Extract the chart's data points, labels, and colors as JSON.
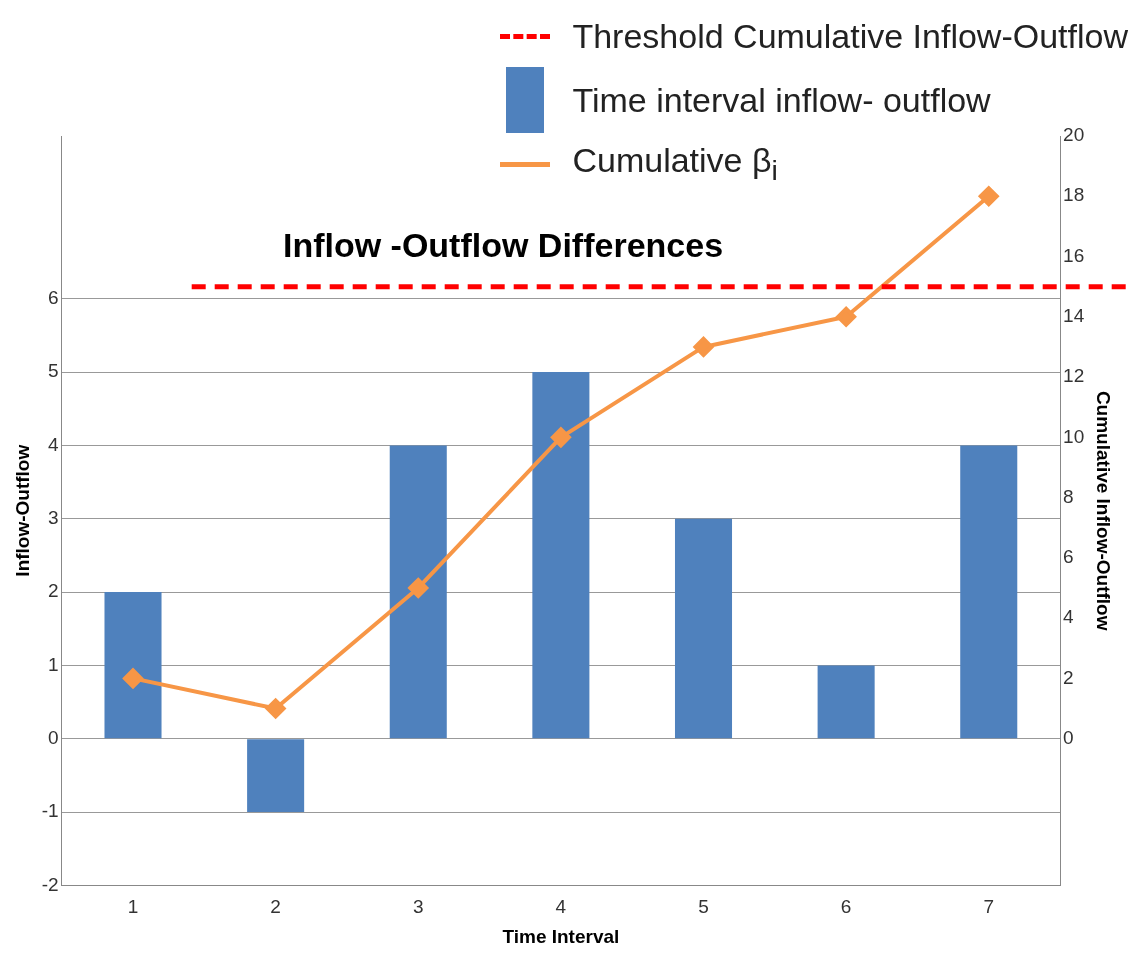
{
  "chart_data": {
    "type": "bar",
    "title": "Inflow -Outflow Differences",
    "xlabel": "Time Interval",
    "ylabel": "Inflow-Outflow",
    "y2label": "Cumulative Inflow-Outflow",
    "categories": [
      "1",
      "2",
      "3",
      "4",
      "5",
      "6",
      "7"
    ],
    "series": [
      {
        "name": "Time interval inflow- outflow",
        "color": "#4f81bd",
        "values": [
          2,
          -1,
          4,
          5,
          3,
          1,
          4
        ]
      },
      {
        "name": "Cumulative β$_{i}$",
        "type": "line",
        "axis": "y2",
        "color": "#f79646",
        "marker": "diamond",
        "line_style": "solid",
        "values": [
          2,
          1,
          5,
          10,
          13,
          14,
          18
        ]
      }
    ],
    "ylim": [
      -2,
      8.22
    ],
    "yticks": [
      -2,
      -1,
      0,
      1,
      2,
      3,
      4,
      5,
      6
    ],
    "y2lim": [
      -4.87,
      20
    ],
    "y2ticks": [
      0,
      2,
      4,
      6,
      8,
      10,
      12,
      14,
      16,
      18,
      20
    ],
    "ref_lines": [
      {
        "axis": "y2",
        "value": 15,
        "label": "Threshold Cumulative Inflow-Outflow",
        "color": "#ff0000",
        "line_style": "dashed"
      }
    ],
    "grid": "y",
    "legend": "top right"
  }
}
